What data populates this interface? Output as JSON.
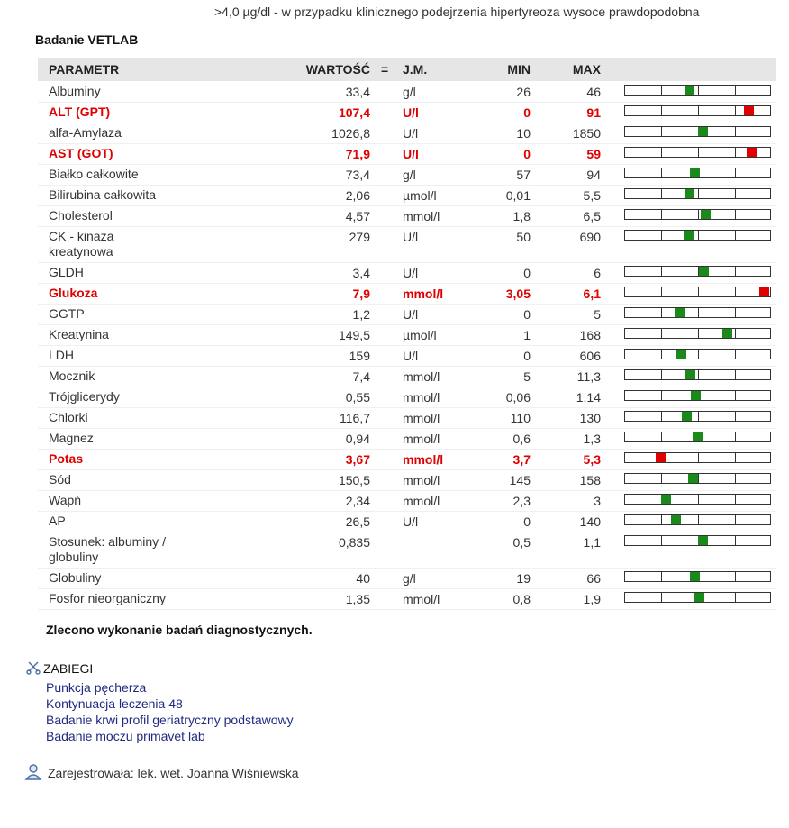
{
  "note": ">4,0 µg/dl - w przypadku klinicznego podejrzenia hipertyreoza wysoce prawdopodobna",
  "section_title": "Badanie VETLAB",
  "table": {
    "headers": [
      "PARAMETR",
      "WARTOŚĆ",
      "=",
      "J.M.",
      "MIN",
      "MAX"
    ],
    "rows": [
      {
        "name": "Albuminy",
        "value": "33,4",
        "unit": "g/l",
        "min": "26",
        "max": "46",
        "abnormal": false
      },
      {
        "name": "ALT (GPT)",
        "value": "107,4",
        "unit": "U/l",
        "min": "0",
        "max": "91",
        "abnormal": true
      },
      {
        "name": "alfa-Amylaza",
        "value": "1026,8",
        "unit": "U/l",
        "min": "10",
        "max": "1850",
        "abnormal": false
      },
      {
        "name": "AST (GOT)",
        "value": "71,9",
        "unit": "U/l",
        "min": "0",
        "max": "59",
        "abnormal": true
      },
      {
        "name": "Białko całkowite",
        "value": "73,4",
        "unit": "g/l",
        "min": "57",
        "max": "94",
        "abnormal": false
      },
      {
        "name": "Bilirubina całkowita",
        "value": "2,06",
        "unit": "µmol/l",
        "min": "0,01",
        "max": "5,5",
        "abnormal": false
      },
      {
        "name": "Cholesterol",
        "value": "4,57",
        "unit": "mmol/l",
        "min": "1,8",
        "max": "6,5",
        "abnormal": false
      },
      {
        "name": "CK - kinaza kreatynowa",
        "value": "279",
        "unit": "U/l",
        "min": "50",
        "max": "690",
        "abnormal": false
      },
      {
        "name": "GLDH",
        "value": "3,4",
        "unit": "U/l",
        "min": "0",
        "max": "6",
        "abnormal": false
      },
      {
        "name": "Glukoza",
        "value": "7,9",
        "unit": "mmol/l",
        "min": "3,05",
        "max": "6,1",
        "abnormal": true
      },
      {
        "name": "GGTP",
        "value": "1,2",
        "unit": "U/l",
        "min": "0",
        "max": "5",
        "abnormal": false
      },
      {
        "name": "Kreatynina",
        "value": "149,5",
        "unit": "µmol/l",
        "min": "1",
        "max": "168",
        "abnormal": false
      },
      {
        "name": "LDH",
        "value": "159",
        "unit": "U/l",
        "min": "0",
        "max": "606",
        "abnormal": false
      },
      {
        "name": "Mocznik",
        "value": "7,4",
        "unit": "mmol/l",
        "min": "5",
        "max": "11,3",
        "abnormal": false
      },
      {
        "name": "Trójglicerydy",
        "value": "0,55",
        "unit": "mmol/l",
        "min": "0,06",
        "max": "1,14",
        "abnormal": false
      },
      {
        "name": "Chlorki",
        "value": "116,7",
        "unit": "mmol/l",
        "min": "110",
        "max": "130",
        "abnormal": false
      },
      {
        "name": "Magnez",
        "value": "0,94",
        "unit": "mmol/l",
        "min": "0,6",
        "max": "1,3",
        "abnormal": false
      },
      {
        "name": "Potas",
        "value": "3,67",
        "unit": "mmol/l",
        "min": "3,7",
        "max": "5,3",
        "abnormal": true
      },
      {
        "name": "Sód",
        "value": "150,5",
        "unit": "mmol/l",
        "min": "145",
        "max": "158",
        "abnormal": false
      },
      {
        "name": "Wapń",
        "value": "2,34",
        "unit": "mmol/l",
        "min": "2,3",
        "max": "3",
        "abnormal": false
      },
      {
        "name": "AP",
        "value": "26,5",
        "unit": "U/l",
        "min": "0",
        "max": "140",
        "abnormal": false
      },
      {
        "name": "Stosunek: albuminy / globuliny",
        "value": "0,835",
        "min": "0,5",
        "max": "1,1",
        "abnormal": false
      },
      {
        "name": "Globuliny",
        "value": "40",
        "unit": "g/l",
        "min": "19",
        "max": "66",
        "abnormal": false
      },
      {
        "name": "Fosfor nieorganiczny",
        "value": "1,35",
        "unit": "mmol/l",
        "min": "0,8",
        "max": "1,9",
        "abnormal": false
      }
    ]
  },
  "footer_note": "Zlecono wykonanie badań diagnostycznych.",
  "procedures": {
    "title": "ZABIEGI",
    "items": [
      "Punkcja pęcherza",
      "Kontynuacja leczenia 48",
      "Badanie krwi profil geriatryczny podstawowy",
      "Badanie moczu primavet lab"
    ]
  },
  "registered": "Zarejestrowała: lek. wet. Joanna Wiśniewska"
}
